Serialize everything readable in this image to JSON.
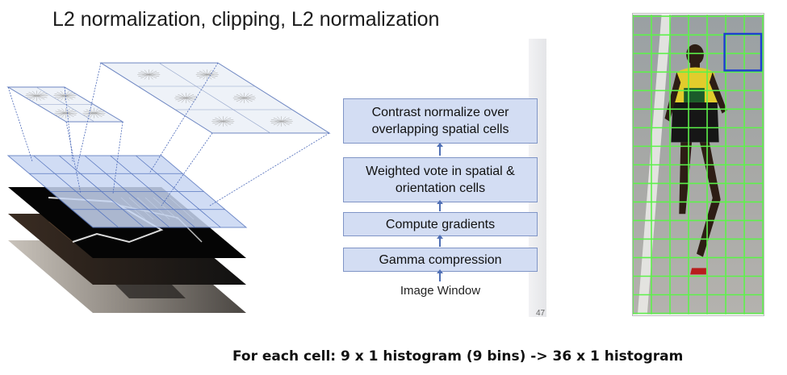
{
  "slide": {
    "title": "L2 normalization, clipping, L2 normalization",
    "page_fragment": "47",
    "caption": "For each cell: 9 x 1 histogram (9 bins) -> 36 x 1 histogram"
  },
  "pipeline": {
    "steps": [
      "Contrast normalize over\noverlapping spatial cells",
      "Weighted vote in spatial &\norientation cells",
      "Compute gradients",
      "Gamma compression"
    ],
    "input_label": "Image Window"
  },
  "colors": {
    "box_fill": "#d3ddf3",
    "box_border": "#8095c6",
    "arrow": "#4f6fb5",
    "grid_green": "#5df24a",
    "highlight_blue": "#1f3fd0",
    "mesh_blue": "#b9cdf0"
  }
}
